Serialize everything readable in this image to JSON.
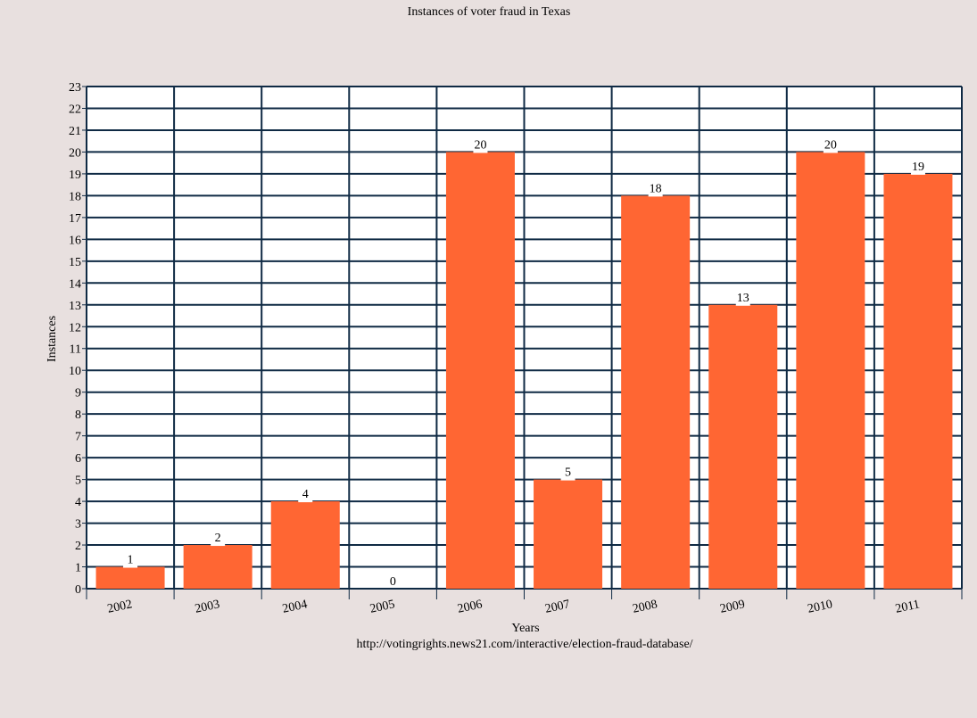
{
  "chart_data": {
    "type": "bar",
    "title": "Instances of voter fraud in Texas",
    "xlabel": "Years",
    "ylabel": "Instances",
    "source": "http://votingrights.news21.com/interactive/election-fraud-database/",
    "categories": [
      "2002",
      "2003",
      "2004",
      "2005",
      "2006",
      "2007",
      "2008",
      "2009",
      "2010",
      "2011"
    ],
    "values": [
      1,
      2,
      4,
      0,
      20,
      5,
      18,
      13,
      20,
      19
    ],
    "ylim": [
      0,
      23
    ],
    "y_ticks": [
      "0",
      "1",
      "2",
      "3",
      "4",
      "5",
      "6",
      "7",
      "8",
      "9",
      "10",
      "11",
      "12",
      "13",
      "14",
      "15",
      "16",
      "17",
      "18",
      "19",
      "20",
      "21",
      "22",
      "23"
    ],
    "grid": true,
    "colors": {
      "bar": "#ff6633",
      "grid": "#0f2a44",
      "background": "#e8e0df",
      "plot_background": "#ffffff"
    }
  }
}
